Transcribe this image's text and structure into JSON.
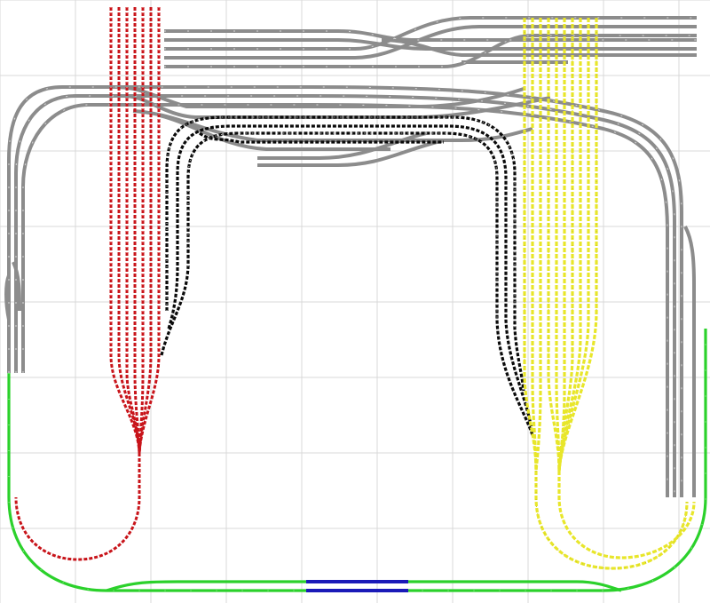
{
  "canvas": {
    "background": "#ffffff",
    "grid_color": "#d9d9d9"
  },
  "track_groups": [
    {
      "name": "gray-mainline-and-yard",
      "color": "#8c8c8c"
    },
    {
      "name": "red-fiddle-yard",
      "color": "#c8141a"
    },
    {
      "name": "black-inner-loop",
      "color": "#0a0a0a"
    },
    {
      "name": "yellow-fiddle-yard",
      "color": "#e8e62a"
    },
    {
      "name": "green-outer-loop",
      "color": "#2bd12b"
    },
    {
      "name": "blue-section",
      "color": "#1a1ab8"
    }
  ]
}
